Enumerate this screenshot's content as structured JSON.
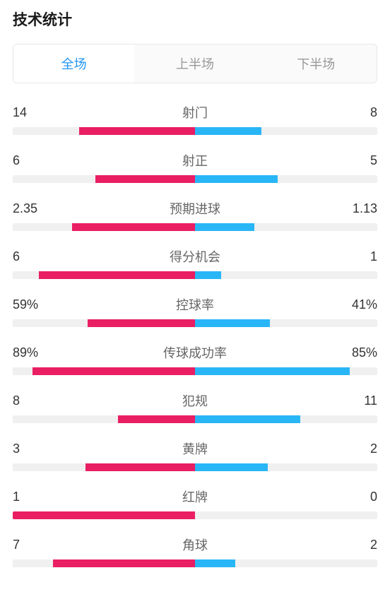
{
  "title": "技术统计",
  "tabs": [
    {
      "label": "全场",
      "active": true
    },
    {
      "label": "上半场",
      "active": false
    },
    {
      "label": "下半场",
      "active": false
    }
  ],
  "colors": {
    "home": "#e91e63",
    "away": "#29b6f6",
    "track": "#f0f0f0",
    "active_tab": "#2196f3",
    "inactive_tab": "#999999",
    "text_main": "#333333",
    "text_sub": "#666666"
  },
  "stats": [
    {
      "name": "射门",
      "home_display": "14",
      "away_display": "8",
      "home_pct": 63.6,
      "away_pct": 36.4
    },
    {
      "name": "射正",
      "home_display": "6",
      "away_display": "5",
      "home_pct": 54.5,
      "away_pct": 45.5
    },
    {
      "name": "预期进球",
      "home_display": "2.35",
      "away_display": "1.13",
      "home_pct": 67.5,
      "away_pct": 32.5
    },
    {
      "name": "得分机会",
      "home_display": "6",
      "away_display": "1",
      "home_pct": 85.7,
      "away_pct": 14.3
    },
    {
      "name": "控球率",
      "home_display": "59%",
      "away_display": "41%",
      "home_pct": 59.0,
      "away_pct": 41.0
    },
    {
      "name": "传球成功率",
      "home_display": "89%",
      "away_display": "85%",
      "home_pct": 89.0,
      "away_pct": 85.0
    },
    {
      "name": "犯规",
      "home_display": "8",
      "away_display": "11",
      "home_pct": 42.1,
      "away_pct": 57.9
    },
    {
      "name": "黄牌",
      "home_display": "3",
      "away_display": "2",
      "home_pct": 60.0,
      "away_pct": 40.0
    },
    {
      "name": "红牌",
      "home_display": "1",
      "away_display": "0",
      "home_pct": 100.0,
      "away_pct": 0.0
    },
    {
      "name": "角球",
      "home_display": "7",
      "away_display": "2",
      "home_pct": 77.8,
      "away_pct": 22.2
    }
  ]
}
